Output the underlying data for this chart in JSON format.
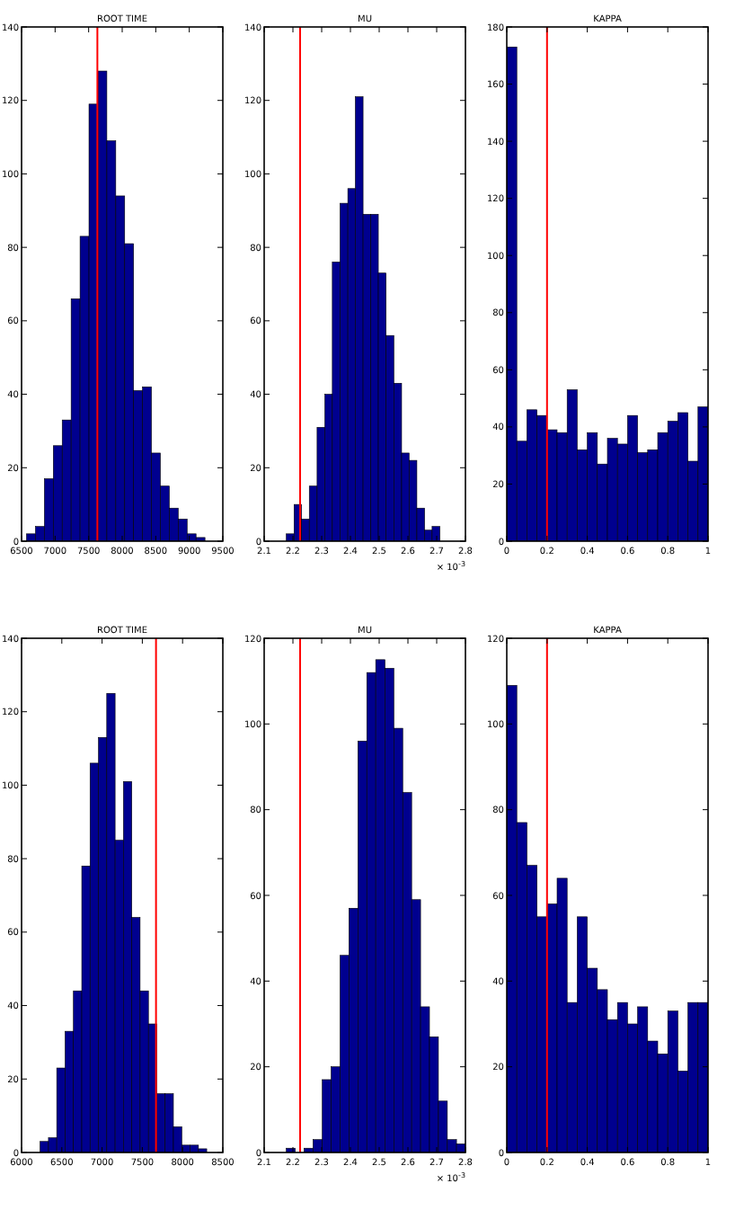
{
  "chart_data": [
    {
      "type": "histogram",
      "title": "ROOT TIME",
      "bins": [
        6574,
        6707,
        6840,
        6973,
        7106,
        7239,
        7372,
        7505,
        7638,
        7771,
        7904,
        8037,
        8170,
        8303,
        8436,
        8569,
        8702,
        8835,
        8968,
        9101,
        9234
      ],
      "values": [
        2,
        4,
        17,
        26,
        33,
        66,
        83,
        119,
        128,
        109,
        94,
        81,
        41,
        42,
        24,
        15,
        9,
        6,
        2,
        1
      ],
      "color": "#00008f",
      "xlim": [
        6500,
        9500
      ],
      "ylim": [
        0,
        140
      ],
      "xticks": [
        6500,
        7000,
        7500,
        8000,
        8500,
        9000,
        9500
      ],
      "yticks": [
        0,
        20,
        40,
        60,
        80,
        100,
        120,
        140
      ],
      "ref_lines": [
        {
          "axis": "x",
          "value": 7630,
          "color": "#ff0000"
        }
      ]
    },
    {
      "type": "histogram",
      "title": "MU",
      "xlabel": "× 10$^{-3}$",
      "bins": [
        2.177,
        2.204,
        2.23,
        2.257,
        2.284,
        2.311,
        2.337,
        2.364,
        2.391,
        2.417,
        2.444,
        2.471,
        2.497,
        2.524,
        2.551,
        2.578,
        2.604,
        2.631,
        2.658,
        2.684,
        2.711
      ],
      "values": [
        2,
        10,
        6,
        15,
        31,
        40,
        76,
        92,
        96,
        121,
        89,
        89,
        73,
        56,
        43,
        24,
        22,
        9,
        3,
        4
      ],
      "color": "#00008f",
      "xlim": [
        2.1,
        2.8
      ],
      "ylim": [
        0,
        140
      ],
      "xticks": [
        2.1,
        2.2,
        2.3,
        2.4,
        2.5,
        2.6,
        2.7,
        2.8
      ],
      "yticks": [
        0,
        20,
        40,
        60,
        80,
        100,
        120,
        140
      ],
      "ref_lines": [
        {
          "axis": "x",
          "value": 2.225,
          "color": "#ff0000"
        }
      ]
    },
    {
      "type": "histogram",
      "title": "KAPPA",
      "bins": [
        0,
        0.05,
        0.1,
        0.15,
        0.2,
        0.25,
        0.3,
        0.35,
        0.4,
        0.45,
        0.5,
        0.55,
        0.6,
        0.65,
        0.7,
        0.75,
        0.8,
        0.85,
        0.9,
        0.95,
        1
      ],
      "values": [
        173,
        35,
        46,
        44,
        39,
        38,
        53,
        32,
        38,
        27,
        36,
        34,
        44,
        31,
        32,
        38,
        42,
        45,
        28,
        47
      ],
      "color": "#00008f",
      "xlim": [
        0,
        1
      ],
      "ylim": [
        0,
        180
      ],
      "xticks": [
        0,
        0.2,
        0.4,
        0.6,
        0.8,
        1
      ],
      "yticks": [
        0,
        20,
        40,
        60,
        80,
        100,
        120,
        140,
        160,
        180
      ],
      "ref_lines": [
        {
          "axis": "x",
          "value": 0.2,
          "color": "#ff0000"
        }
      ]
    },
    {
      "type": "histogram",
      "title": "ROOT TIME",
      "bins": [
        6230,
        6334,
        6437,
        6541,
        6644,
        6748,
        6851,
        6955,
        7058,
        7162,
        7265,
        7369,
        7472,
        7576,
        7679,
        7783,
        7886,
        7990,
        8093,
        8197,
        8300
      ],
      "values": [
        3,
        4,
        23,
        33,
        44,
        78,
        106,
        113,
        125,
        85,
        101,
        64,
        44,
        35,
        16,
        16,
        7,
        2,
        2,
        1
      ],
      "color": "#00008f",
      "xlim": [
        6000,
        8500
      ],
      "ylim": [
        0,
        140
      ],
      "xticks": [
        6000,
        6500,
        7000,
        7500,
        8000,
        8500
      ],
      "yticks": [
        0,
        20,
        40,
        60,
        80,
        100,
        120,
        140
      ],
      "ref_lines": [
        {
          "axis": "x",
          "value": 7670,
          "color": "#ff0000"
        }
      ]
    },
    {
      "type": "histogram",
      "title": "MU",
      "xlabel": "× 10$^{-3}$",
      "bins": [
        2.177,
        2.208,
        2.239,
        2.27,
        2.302,
        2.333,
        2.364,
        2.395,
        2.426,
        2.457,
        2.488,
        2.52,
        2.551,
        2.582,
        2.613,
        2.644,
        2.675,
        2.706,
        2.737,
        2.769,
        2.8
      ],
      "values": [
        1,
        0,
        1,
        3,
        17,
        20,
        46,
        57,
        96,
        112,
        115,
        113,
        99,
        84,
        59,
        34,
        27,
        12,
        3,
        2
      ],
      "color": "#00008f",
      "xlim": [
        2.1,
        2.8
      ],
      "ylim": [
        0,
        120
      ],
      "xticks": [
        2.1,
        2.2,
        2.3,
        2.4,
        2.5,
        2.6,
        2.7,
        2.8
      ],
      "yticks": [
        0,
        20,
        40,
        60,
        80,
        100,
        120
      ],
      "ref_lines": [
        {
          "axis": "x",
          "value": 2.225,
          "color": "#ff0000"
        }
      ]
    },
    {
      "type": "histogram",
      "title": "KAPPA",
      "bins": [
        0,
        0.05,
        0.1,
        0.15,
        0.2,
        0.25,
        0.3,
        0.35,
        0.4,
        0.45,
        0.5,
        0.55,
        0.6,
        0.65,
        0.7,
        0.75,
        0.8,
        0.85,
        0.9,
        0.95,
        1
      ],
      "values": [
        109,
        77,
        67,
        55,
        58,
        64,
        35,
        55,
        43,
        38,
        31,
        35,
        30,
        34,
        26,
        23,
        33,
        19,
        35,
        35
      ],
      "color": "#00008f",
      "xlim": [
        0,
        1
      ],
      "ylim": [
        0,
        120
      ],
      "xticks": [
        0,
        0.2,
        0.4,
        0.6,
        0.8,
        1
      ],
      "yticks": [
        0,
        20,
        40,
        60,
        80,
        100,
        120
      ],
      "ref_lines": [
        {
          "axis": "x",
          "value": 0.2,
          "color": "#ff0000"
        }
      ]
    }
  ]
}
